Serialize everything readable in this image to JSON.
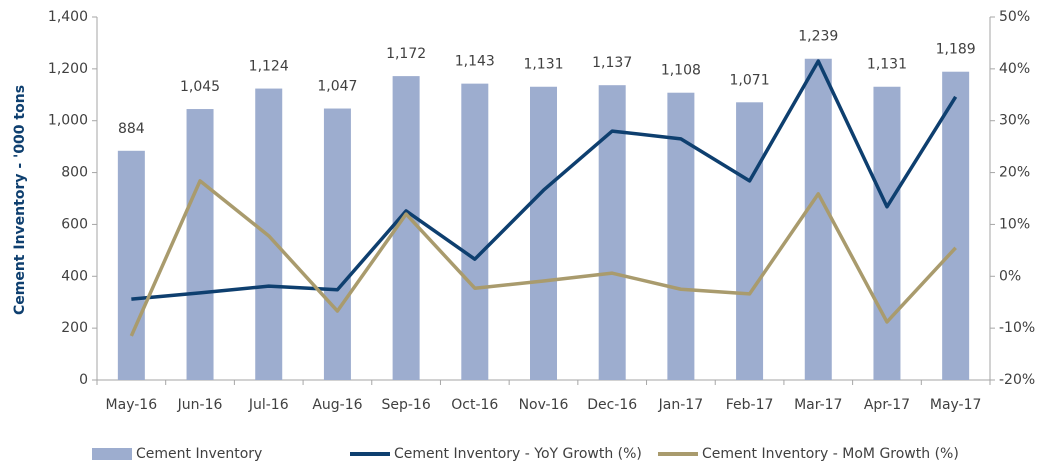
{
  "chart_data": {
    "type": "bar_line",
    "y_label": "Cement Inventory - '000 tons",
    "categories": [
      "May-16",
      "Jun-16",
      "Jul-16",
      "Aug-16",
      "Sep-16",
      "Oct-16",
      "Nov-16",
      "Dec-16",
      "Jan-17",
      "Feb-17",
      "Mar-17",
      "Apr-17",
      "May-17"
    ],
    "series": [
      {
        "name": "Cement Inventory",
        "type": "bar",
        "color": "#9dadcf",
        "axis": "y",
        "values": [
          884,
          1045,
          1124,
          1047,
          1172,
          1143,
          1131,
          1137,
          1108,
          1071,
          1239,
          1131,
          1189
        ],
        "value_labels": [
          "884",
          "1,045",
          "1,124",
          "1,047",
          "1,172",
          "1,143",
          "1,131",
          "1,137",
          "1,108",
          "1,071",
          "1,239",
          "1,131",
          "1,189"
        ]
      },
      {
        "name": "Cement Inventory - YoY Growth (%)",
        "type": "line",
        "color": "#0e3f6f",
        "axis": "y2",
        "values": [
          -4.4,
          -3.2,
          -1.9,
          -2.6,
          12.6,
          3.3,
          16.6,
          28.0,
          26.5,
          18.4,
          41.5,
          13.4,
          34.6
        ]
      },
      {
        "name": "Cement Inventory - MoM Growth (%)",
        "type": "line",
        "color": "#a99b6d",
        "axis": "y2",
        "values": [
          -11.5,
          18.4,
          7.8,
          -6.7,
          12.0,
          -2.3,
          -0.9,
          0.6,
          -2.5,
          -3.4,
          15.9,
          -8.8,
          5.5
        ]
      }
    ],
    "ylim": [
      0,
      1400
    ],
    "yticks": [
      0,
      200,
      400,
      600,
      800,
      {
        "value": 1000,
        "label": "1,000"
      },
      {
        "value": 1200,
        "label": "1,200"
      },
      {
        "value": 1400,
        "label": "1,400"
      }
    ],
    "y2lim": [
      -20,
      50
    ],
    "y2ticks": [
      {
        "value": -20,
        "label": "-20%"
      },
      {
        "value": -10,
        "label": "-10%"
      },
      {
        "value": 0,
        "label": "0%"
      },
      {
        "value": 10,
        "label": "10%"
      },
      {
        "value": 20,
        "label": "20%"
      },
      {
        "value": 30,
        "label": "30%"
      },
      {
        "value": 40,
        "label": "40%"
      },
      {
        "value": 50,
        "label": "50%"
      }
    ],
    "legend": "bottom"
  }
}
